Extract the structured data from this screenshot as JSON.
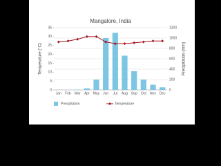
{
  "chart_data": {
    "type": "bar",
    "title": "Mangalore, India",
    "categories": [
      "Jan",
      "Feb",
      "Mar",
      "Apr",
      "May",
      "Jun",
      "Jul",
      "Aug",
      "Sep",
      "Oct",
      "Nov",
      "Dec"
    ],
    "ylabel": "Temperature (°C)",
    "y2label": "Precipitation (mm)",
    "ylim": [
      0,
      35
    ],
    "yticks": [
      0,
      5,
      10,
      15,
      20,
      25,
      30,
      35
    ],
    "y2lim": [
      0,
      1200
    ],
    "y2ticks": [
      0,
      200,
      400,
      600,
      800,
      1000,
      1200
    ],
    "grid": true,
    "legend": "bottom",
    "series": [
      {
        "name": "Precipitation",
        "type": "bar",
        "axis": "y2",
        "color": "#7cc6e4",
        "values": [
          2,
          1,
          5,
          30,
          200,
          1000,
          1100,
          660,
          360,
          200,
          100,
          50
        ]
      },
      {
        "name": "Temperature",
        "type": "line",
        "axis": "y",
        "color": "#a3101e",
        "values": [
          27,
          27.5,
          28.5,
          30,
          30,
          27,
          26,
          26,
          26.5,
          27,
          27.5,
          27.5
        ]
      }
    ]
  }
}
